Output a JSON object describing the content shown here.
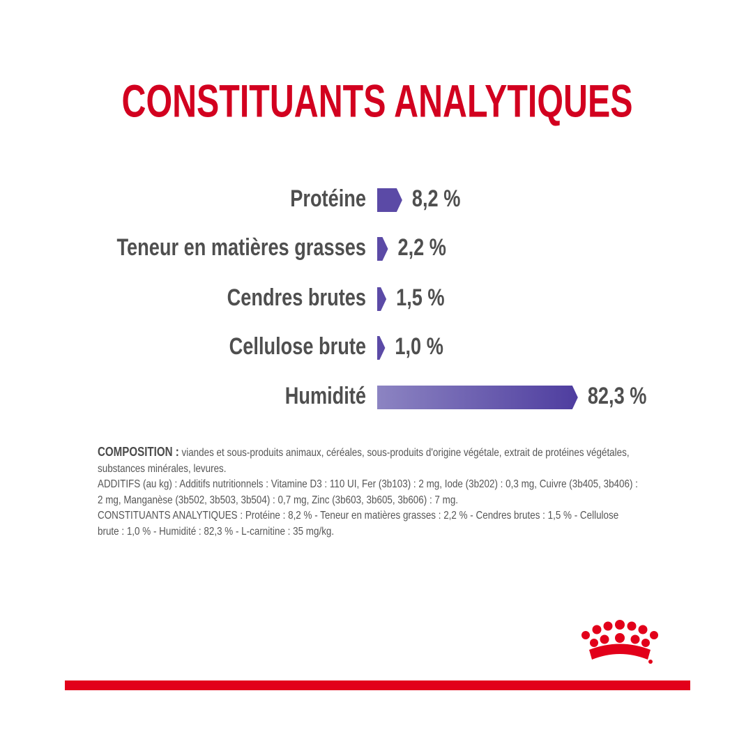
{
  "chart_data": {
    "type": "bar",
    "orientation": "horizontal",
    "title": "CONSTITUANTS ANALYTIQUES",
    "categories": [
      "Protéine",
      "Teneur en matières grasses",
      "Cendres brutes",
      "Cellulose brute",
      "Humidité"
    ],
    "values": [
      8.2,
      2.2,
      1.5,
      1.0,
      82.3
    ],
    "value_labels": [
      "8,2 %",
      "2,2 %",
      "1,5 %",
      "1,0 %",
      "82,3 %"
    ],
    "color": "#5b4aa6"
  },
  "composition": {
    "label": "COMPOSITION :",
    "text": "viandes et sous-produits animaux, céréales, sous-produits d'origine végétale, extrait de protéines végétales, substances minérales, levures.",
    "additives": "ADDITIFS (au kg) : Additifs nutritionnels : Vitamine D3 : 110 UI, Fer (3b103) : 2 mg, Iode (3b202) : 0,3 mg, Cuivre (3b405, 3b406) : 2 mg, Manganèse (3b502, 3b503, 3b504) : 0,7 mg, Zinc (3b603, 3b605, 3b606) : 7 mg.",
    "constituents": "CONSTITUANTS ANALYTIQUES : Protéine : 8,2 % - Teneur en matières grasses : 2,2 % - Cendres brutes : 1,5 % - Cellulose brute : 1,0 % - Humidité : 82,3 % - L-carnitine : 35 mg/kg."
  }
}
